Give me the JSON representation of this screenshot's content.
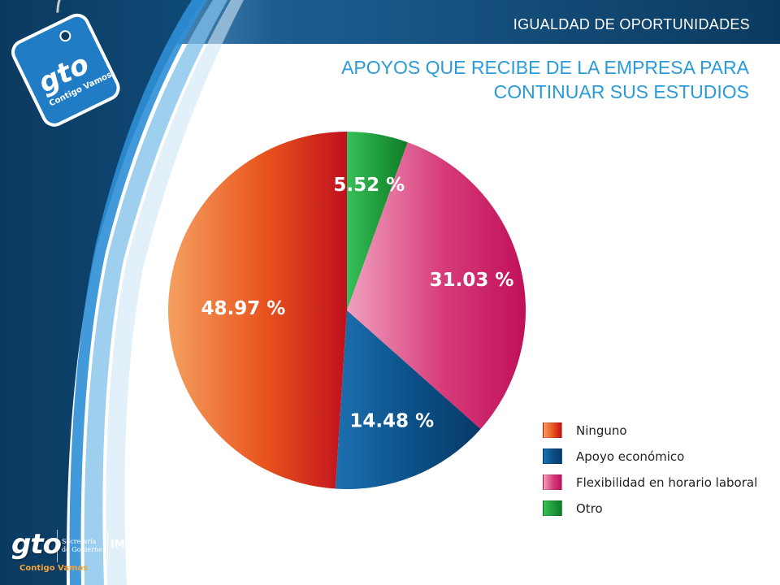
{
  "header": {
    "section_label": "IGUALDAD DE OPORTUNIDADES"
  },
  "title": {
    "line1": "APOYOS QUE RECIBE DE LA EMPRESA PARA",
    "line2": "CONTINUAR SUS ESTUDIOS"
  },
  "brand_tag": {
    "logo_text": "gto",
    "tagline": "Contigo Vamos"
  },
  "footer_brand": {
    "logo_text": "gto",
    "secretaria_line1": "Secretaría",
    "secretaria_line2": "de Gobierno",
    "imug": "IMUG",
    "tagline": "Contigo Vamos"
  },
  "colors": {
    "theme_dark_blue": "#0b3a5f",
    "title_blue": "#2a9ad8",
    "ninguno": "#e8521c",
    "apoyo": "#0b4f86",
    "flexibilidad": "#d63a78",
    "otro": "#1e9a3a"
  },
  "chart_data": {
    "type": "pie",
    "title": "APOYOS QUE RECIBE DE LA EMPRESA PARA CONTINUAR SUS ESTUDIOS",
    "legend_position": "bottom-right",
    "start_angle_deg": 0,
    "direction": "clockwise",
    "slices": [
      {
        "label": "Otro",
        "value": 5.52,
        "value_label": "5.52 %",
        "color": "#1e9a3a",
        "light": "#38c05a",
        "dark": "#137a2a"
      },
      {
        "label": "Flexibilidad en horario laboral",
        "value": 31.03,
        "value_label": "31.03 %",
        "color": "#d63a78",
        "light": "#f0a0be",
        "dark": "#c0105a"
      },
      {
        "label": "Apoyo económico",
        "value": 14.48,
        "value_label": "14.48  %",
        "color": "#0b4f86",
        "light": "#1d6fb0",
        "dark": "#083a66"
      },
      {
        "label": "Ninguno",
        "value": 48.97,
        "value_label": "48.97 %",
        "color": "#e8521c",
        "light": "#f4a060",
        "dark": "#c0101e"
      }
    ],
    "legend_order": [
      "Ninguno",
      "Apoyo económico",
      "Flexibilidad en horario laboral",
      "Otro"
    ]
  }
}
